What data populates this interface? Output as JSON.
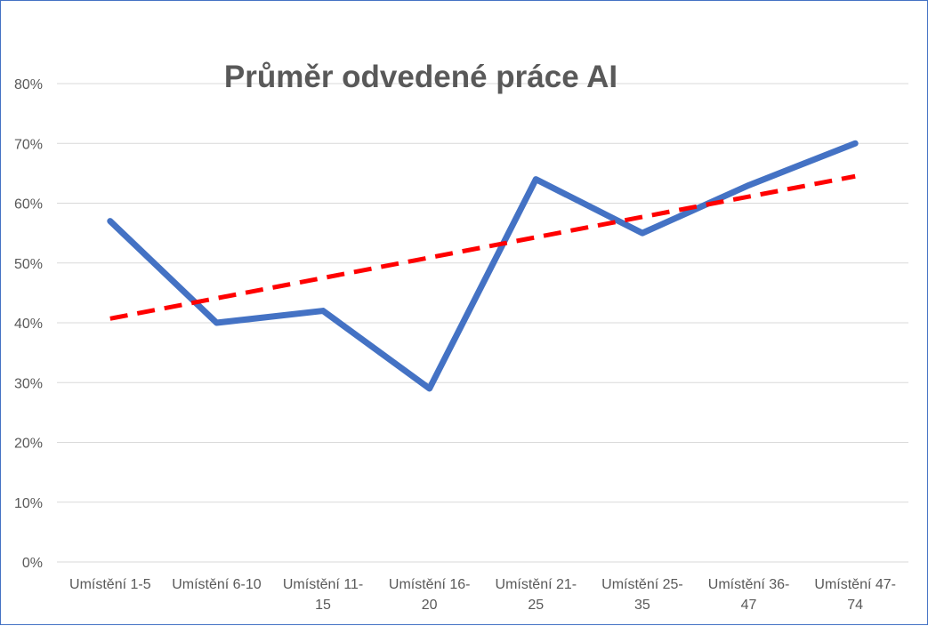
{
  "chart_data": {
    "type": "line",
    "title": "Průměr odvedené práce AI",
    "categories": [
      [
        "Umístění  1-5"
      ],
      [
        "Umístění  6-10"
      ],
      [
        "Umístění  11-",
        "15"
      ],
      [
        "Umístění  16-",
        "20"
      ],
      [
        "Umístění  21-",
        "25"
      ],
      [
        "Umístění  25-",
        "35"
      ],
      [
        "Umístění  36-",
        "47"
      ],
      [
        "Umístění  47-",
        "74"
      ]
    ],
    "series": [
      {
        "values": [
          0.57,
          0.4,
          0.42,
          0.29,
          0.64,
          0.55,
          0.63,
          0.7
        ],
        "color": "#4472c4"
      }
    ],
    "trendline": {
      "type": "linear",
      "values": [
        0.407,
        0.441,
        0.475,
        0.509,
        0.543,
        0.577,
        0.611,
        0.645
      ],
      "color": "#ff0000",
      "style": "dashed"
    },
    "ylim": [
      0,
      0.8
    ],
    "yticks": [
      "0%",
      "10%",
      "20%",
      "30%",
      "40%",
      "50%",
      "60%",
      "70%",
      "80%"
    ],
    "grid": true,
    "xlabel": "",
    "ylabel": ""
  }
}
